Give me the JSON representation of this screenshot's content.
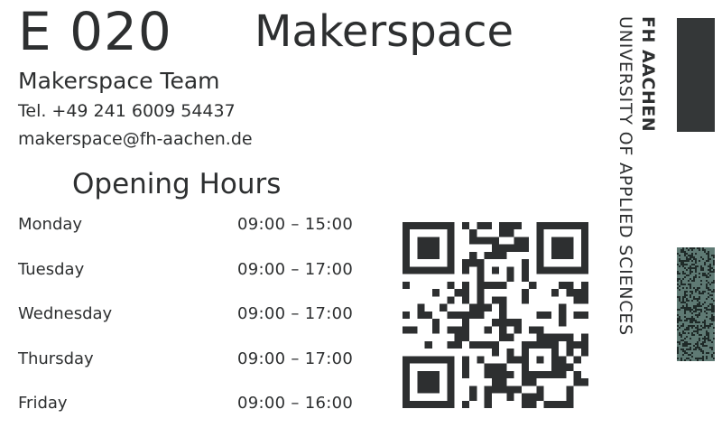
{
  "room": {
    "number": "E 020",
    "name": "Makerspace"
  },
  "contact": {
    "team": "Makerspace Team",
    "phone": "Tel. +49 241 6009 54437",
    "email": "makerspace@fh-aachen.de"
  },
  "opening_hours": {
    "title": "Opening Hours",
    "rows": [
      {
        "day": "Monday",
        "hours": "09:00 – 15:00"
      },
      {
        "day": "Tuesday",
        "hours": "09:00 – 17:00"
      },
      {
        "day": "Wednesday",
        "hours": "09:00 – 17:00"
      },
      {
        "day": "Thursday",
        "hours": "09:00 – 17:00"
      },
      {
        "day": "Friday",
        "hours": "09:00 – 16:00"
      }
    ]
  },
  "university": {
    "line1": "FH AACHEN",
    "line2": "UNIVERSITY OF APPLIED SCIENCES"
  },
  "colors": {
    "ink": "#2d2f30",
    "bar_dark": "#343738",
    "bar_pattern": "#5f7a74"
  },
  "icons": {
    "qr": "qr-code-icon"
  }
}
